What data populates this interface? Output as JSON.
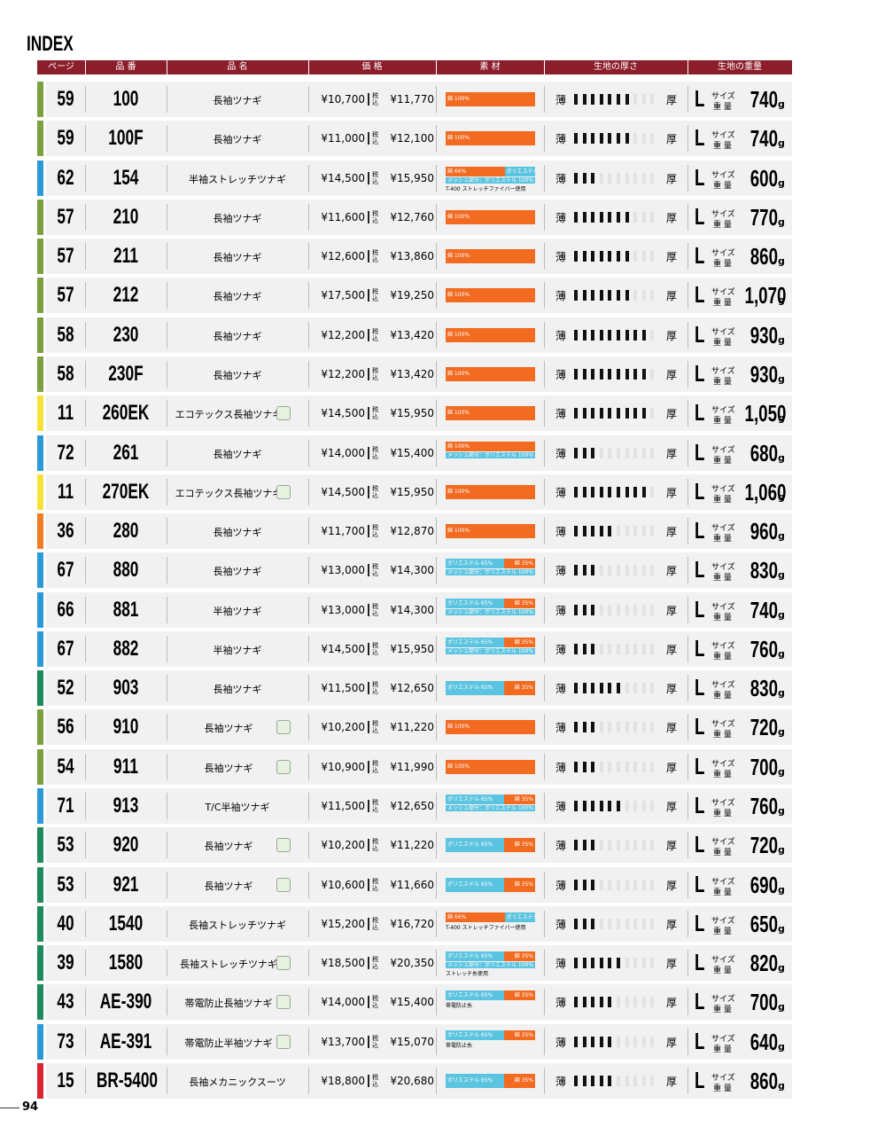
{
  "title": "INDEX",
  "page_number": "94",
  "columns": [
    "ページ",
    "品 番",
    "品 名",
    "価 格",
    "素 材",
    "生地の厚さ",
    "生地の重量"
  ],
  "labels": {
    "thin": "薄",
    "thick": "厚",
    "size": "L",
    "size_label": "サイズ",
    "weight_label": "重 量",
    "unit": "g",
    "tax": "税込"
  },
  "rows": [
    {
      "page": 59,
      "code": "100",
      "name": "長袖ツナギ",
      "price": "¥10,700",
      "price_tax": "¥11,770",
      "color": "#7ba23f",
      "material": [
        {
          "label": "綿 100%",
          "share": 100,
          "color": "#f26b21"
        }
      ],
      "thickness": 7,
      "weight": "740"
    },
    {
      "page": 59,
      "code": "100F",
      "name": "長袖ツナギ",
      "price": "¥11,000",
      "price_tax": "¥12,100",
      "color": "#7ba23f",
      "material": [
        {
          "label": "綿 100%",
          "share": 100,
          "color": "#f26b21"
        }
      ],
      "thickness": 7,
      "weight": "740"
    },
    {
      "page": 62,
      "code": "154",
      "name": "半袖ストレッチツナギ",
      "price": "¥14,500",
      "price_tax": "¥15,950",
      "color": "#2b9ad6",
      "material": [
        {
          "label": "綿 66%",
          "share": 66,
          "color": "#f26b21"
        },
        {
          "label": "ポリエステル 34%",
          "share": 34,
          "color": "#5bc4e0"
        }
      ],
      "mesh": "メッシュ部分：ポリエステル 100%",
      "note": "T-400 ストレッチファイバー使用",
      "thickness": 3,
      "weight": "600"
    },
    {
      "page": 57,
      "code": "210",
      "name": "長袖ツナギ",
      "price": "¥11,600",
      "price_tax": "¥12,760",
      "color": "#7ba23f",
      "material": [
        {
          "label": "綿 100%",
          "share": 100,
          "color": "#f26b21"
        }
      ],
      "thickness": 7,
      "weight": "770"
    },
    {
      "page": 57,
      "code": "211",
      "name": "長袖ツナギ",
      "price": "¥12,600",
      "price_tax": "¥13,860",
      "color": "#7ba23f",
      "material": [
        {
          "label": "綿 100%",
          "share": 100,
          "color": "#f26b21"
        }
      ],
      "thickness": 7,
      "weight": "860"
    },
    {
      "page": 57,
      "code": "212",
      "name": "長袖ツナギ",
      "price": "¥17,500",
      "price_tax": "¥19,250",
      "color": "#7ba23f",
      "material": [
        {
          "label": "綿 100%",
          "share": 100,
          "color": "#f26b21"
        }
      ],
      "thickness": 7,
      "weight": "1,070"
    },
    {
      "page": 58,
      "code": "230",
      "name": "長袖ツナギ",
      "price": "¥12,200",
      "price_tax": "¥13,420",
      "color": "#7ba23f",
      "material": [
        {
          "label": "綿 100%",
          "share": 100,
          "color": "#f26b21"
        }
      ],
      "thickness": 9,
      "weight": "930"
    },
    {
      "page": 58,
      "code": "230F",
      "name": "長袖ツナギ",
      "price": "¥12,200",
      "price_tax": "¥13,420",
      "color": "#7ba23f",
      "material": [
        {
          "label": "綿 100%",
          "share": 100,
          "color": "#f26b21"
        }
      ],
      "thickness": 9,
      "weight": "930"
    },
    {
      "page": 11,
      "code": "260EK",
      "name": "エコテックス長袖ツナギ",
      "badge": true,
      "price": "¥14,500",
      "price_tax": "¥15,950",
      "color": "#f7e23a",
      "material": [
        {
          "label": "綿 100%",
          "share": 100,
          "color": "#f26b21"
        }
      ],
      "thickness": 9,
      "weight": "1,050"
    },
    {
      "page": 72,
      "code": "261",
      "name": "長袖ツナギ",
      "price": "¥14,000",
      "price_tax": "¥15,400",
      "color": "#2b9ad6",
      "material": [
        {
          "label": "綿 100%",
          "share": 100,
          "color": "#f26b21"
        }
      ],
      "mesh": "メッシュ部分：ポリエステル 100%",
      "thickness": 3,
      "weight": "680"
    },
    {
      "page": 11,
      "code": "270EK",
      "name": "エコテックス長袖ツナギ",
      "badge": true,
      "price": "¥14,500",
      "price_tax": "¥15,950",
      "color": "#f7e23a",
      "material": [
        {
          "label": "綿 100%",
          "share": 100,
          "color": "#f26b21"
        }
      ],
      "thickness": 9,
      "weight": "1,060"
    },
    {
      "page": 36,
      "code": "280",
      "name": "長袖ツナギ",
      "price": "¥11,700",
      "price_tax": "¥12,870",
      "color": "#f07c23",
      "material": [
        {
          "label": "綿 100%",
          "share": 100,
          "color": "#f26b21"
        }
      ],
      "thickness": 5,
      "weight": "960"
    },
    {
      "page": 67,
      "code": "880",
      "name": "長袖ツナギ",
      "price": "¥13,000",
      "price_tax": "¥14,300",
      "color": "#2b9ad6",
      "material": [
        {
          "label": "ポリエステル 65%",
          "share": 65,
          "color": "#5bc4e0"
        },
        {
          "label": "綿 35%",
          "share": 35,
          "color": "#f26b21"
        }
      ],
      "mesh": "メッシュ部分：ポリエステル 100%",
      "thickness": 3,
      "weight": "830"
    },
    {
      "page": 66,
      "code": "881",
      "name": "半袖ツナギ",
      "price": "¥13,000",
      "price_tax": "¥14,300",
      "color": "#2b9ad6",
      "material": [
        {
          "label": "ポリエステル 65%",
          "share": 65,
          "color": "#5bc4e0"
        },
        {
          "label": "綿 35%",
          "share": 35,
          "color": "#f26b21"
        }
      ],
      "mesh": "メッシュ部分：ポリエステル 100%",
      "thickness": 3,
      "weight": "740"
    },
    {
      "page": 67,
      "code": "882",
      "name": "半袖ツナギ",
      "price": "¥14,500",
      "price_tax": "¥15,950",
      "color": "#2b9ad6",
      "material": [
        {
          "label": "ポリエステル 65%",
          "share": 65,
          "color": "#5bc4e0"
        },
        {
          "label": "綿 35%",
          "share": 35,
          "color": "#f26b21"
        }
      ],
      "mesh": "メッシュ部分：ポリエステル 100%",
      "thickness": 3,
      "weight": "760"
    },
    {
      "page": 52,
      "code": "903",
      "name": "長袖ツナギ",
      "price": "¥11,500",
      "price_tax": "¥12,650",
      "color": "#1f8a5b",
      "material": [
        {
          "label": "ポリエステル 65%",
          "share": 65,
          "color": "#5bc4e0"
        },
        {
          "label": "綿 35%",
          "share": 35,
          "color": "#f26b21"
        }
      ],
      "thickness": 6,
      "weight": "830"
    },
    {
      "page": 56,
      "code": "910",
      "name": "長袖ツナギ",
      "badge": true,
      "price": "¥10,200",
      "price_tax": "¥11,220",
      "color": "#7ba23f",
      "material": [
        {
          "label": "綿 100%",
          "share": 100,
          "color": "#f26b21"
        }
      ],
      "thickness": 3,
      "weight": "720"
    },
    {
      "page": 54,
      "code": "911",
      "name": "長袖ツナギ",
      "badge": true,
      "price": "¥10,900",
      "price_tax": "¥11,990",
      "color": "#7ba23f",
      "material": [
        {
          "label": "綿 100%",
          "share": 100,
          "color": "#f26b21"
        }
      ],
      "thickness": 3,
      "weight": "700"
    },
    {
      "page": 71,
      "code": "913",
      "name": "T/C半袖ツナギ",
      "price": "¥11,500",
      "price_tax": "¥12,650",
      "color": "#2b9ad6",
      "material": [
        {
          "label": "ポリエステル 65%",
          "share": 65,
          "color": "#5bc4e0"
        },
        {
          "label": "綿 35%",
          "share": 35,
          "color": "#f26b21"
        }
      ],
      "mesh": "メッシュ部分：ポリエステル 100%",
      "thickness": 6,
      "weight": "760"
    },
    {
      "page": 53,
      "code": "920",
      "name": "長袖ツナギ",
      "badge": true,
      "price": "¥10,200",
      "price_tax": "¥11,220",
      "color": "#1f8a5b",
      "material": [
        {
          "label": "ポリエステル 65%",
          "share": 65,
          "color": "#5bc4e0"
        },
        {
          "label": "綿 35%",
          "share": 35,
          "color": "#f26b21"
        }
      ],
      "thickness": 3,
      "weight": "720"
    },
    {
      "page": 53,
      "code": "921",
      "name": "長袖ツナギ",
      "badge": true,
      "price": "¥10,600",
      "price_tax": "¥11,660",
      "color": "#1f8a5b",
      "material": [
        {
          "label": "ポリエステル 65%",
          "share": 65,
          "color": "#5bc4e0"
        },
        {
          "label": "綿 35%",
          "share": 35,
          "color": "#f26b21"
        }
      ],
      "thickness": 3,
      "weight": "690"
    },
    {
      "page": 40,
      "code": "1540",
      "name": "長袖ストレッチツナギ",
      "price": "¥15,200",
      "price_tax": "¥16,720",
      "color": "#1f8a5b",
      "material": [
        {
          "label": "綿 66%",
          "share": 66,
          "color": "#f26b21"
        },
        {
          "label": "ポリエステル 34%",
          "share": 34,
          "color": "#5bc4e0"
        }
      ],
      "note": "T-400 ストレッチファイバー使用",
      "thickness": 3,
      "weight": "650"
    },
    {
      "page": 39,
      "code": "1580",
      "name": "長袖ストレッチツナギ",
      "badge": true,
      "price": "¥18,500",
      "price_tax": "¥20,350",
      "color": "#1f8a5b",
      "material": [
        {
          "label": "ポリエステル 65%",
          "share": 65,
          "color": "#5bc4e0"
        },
        {
          "label": "綿 35%",
          "share": 35,
          "color": "#f26b21"
        }
      ],
      "mesh": "メッシュ部分：ポリエステル 100%",
      "note": "ストレッチ糸使用",
      "thickness": 6,
      "weight": "820"
    },
    {
      "page": 43,
      "code": "AE-390",
      "name": "帯電防止長袖ツナギ",
      "badge": true,
      "price": "¥14,000",
      "price_tax": "¥15,400",
      "color": "#1f8a5b",
      "material": [
        {
          "label": "ポリエステル 65%",
          "share": 65,
          "color": "#5bc4e0"
        },
        {
          "label": "綿 35%",
          "share": 35,
          "color": "#f26b21"
        }
      ],
      "note": "帯電防止糸",
      "thickness": 5,
      "weight": "700"
    },
    {
      "page": 73,
      "code": "AE-391",
      "name": "帯電防止半袖ツナギ",
      "badge": true,
      "price": "¥13,700",
      "price_tax": "¥15,070",
      "color": "#2b9ad6",
      "material": [
        {
          "label": "ポリエステル 65%",
          "share": 65,
          "color": "#5bc4e0"
        },
        {
          "label": "綿 35%",
          "share": 35,
          "color": "#f26b21"
        }
      ],
      "note": "帯電防止糸",
      "thickness": 5,
      "weight": "640"
    },
    {
      "page": 15,
      "code": "BR-5400",
      "name": "長袖メカニックスーツ",
      "price": "¥18,800",
      "price_tax": "¥20,680",
      "color": "#d9242f",
      "material": [
        {
          "label": "ポリエステル 65%",
          "share": 65,
          "color": "#5bc4e0"
        },
        {
          "label": "綿 35%",
          "share": 35,
          "color": "#f26b21"
        }
      ],
      "thickness": 5,
      "weight": "860"
    }
  ]
}
